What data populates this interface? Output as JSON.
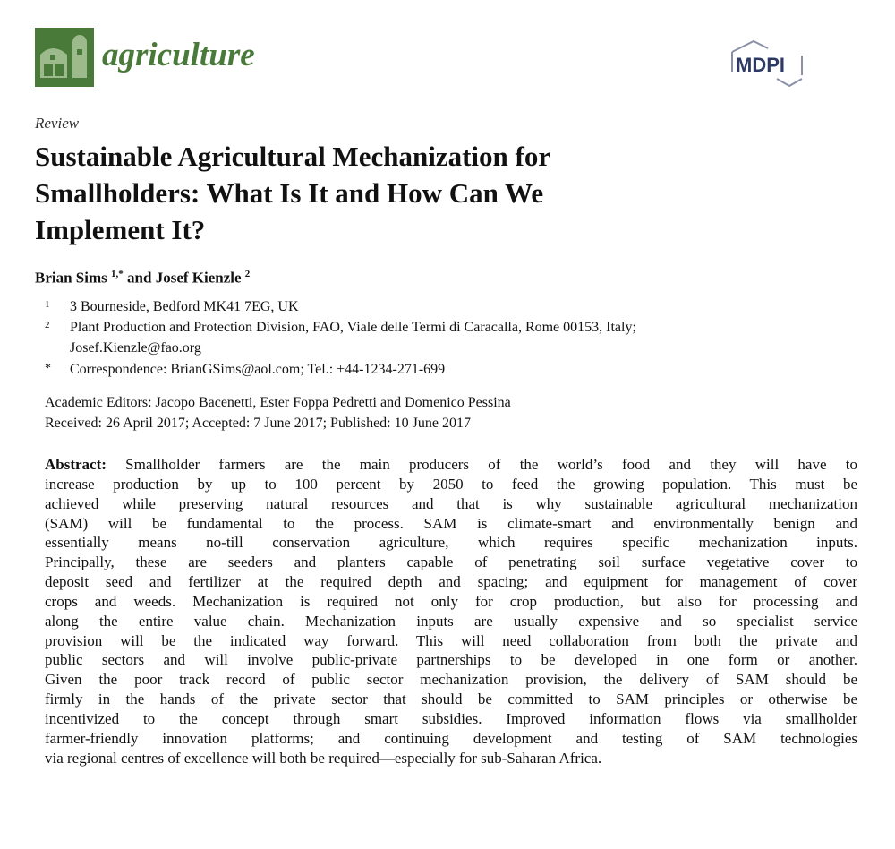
{
  "header": {
    "journal": "agriculture",
    "publisher": "MDPI",
    "brand_color": "#4a7a3a"
  },
  "article_type": "Review",
  "title_lines": [
    "Sustainable Agricultural Mechanization for",
    "Smallholders: What Is It and How Can We",
    "Implement It?"
  ],
  "authors": {
    "a1": "Brian Sims",
    "a1_sup": "1,*",
    "and": " and ",
    "a2": "Josef Kienzle",
    "a2_sup": "2"
  },
  "affiliations": [
    {
      "mark": "1",
      "text": "3 Bourneside, Bedford MK41 7EG, UK"
    },
    {
      "mark": "2",
      "text": "Plant Production and Protection Division, FAO, Viale delle Termi di Caracalla, Rome 00153, Italy;"
    },
    {
      "mark": "",
      "text": "Josef.Kienzle@fao.org"
    },
    {
      "mark": "*",
      "text": "Correspondence: BrianGSims@aol.com; Tel.: +44-1234-271-699"
    }
  ],
  "editors": "Academic Editors: Jacopo Bacenetti, Ester Foppa Pedretti and Domenico Pessina",
  "dates": "Received: 26 April 2017; Accepted: 7 June 2017; Published: 10 June 2017",
  "abstract": {
    "label": "Abstract:",
    "lines": [
      " Smallholder farmers are the main producers of the world’s food and they will have to",
      "increase production by up to 100 percent by 2050 to feed the growing population.  This must be",
      "achieved while preserving natural resources and that is why sustainable agricultural mechanization",
      "(SAM) will be fundamental to the process. SAM is climate-smart and environmentally benign and",
      "essentially means no-till conservation agriculture, which requires specific mechanization inputs.",
      "Principally, these are seeders and planters capable of penetrating soil surface vegetative cover to",
      "deposit seed and fertilizer at the required depth and spacing; and equipment for management of cover",
      "crops and weeds. Mechanization is required not only for crop production, but also for processing and",
      "along the entire value chain. Mechanization inputs are usually expensive and so specialist service",
      "provision will be the indicated way forward.  This will need collaboration from both the private and",
      "public sectors and will involve public-private partnerships to be developed in one form or another.",
      "Given the poor track record of public sector mechanization provision, the delivery of SAM should be",
      "firmly in the hands of the private sector that should be committed to SAM principles or otherwise be",
      "incentivized to the concept through smart subsidies. Improved information flows via smallholder",
      "farmer-friendly innovation platforms; and continuing development and testing of SAM technologies",
      "via regional centres of excellence will both be required—especially for sub-Saharan Africa."
    ]
  }
}
